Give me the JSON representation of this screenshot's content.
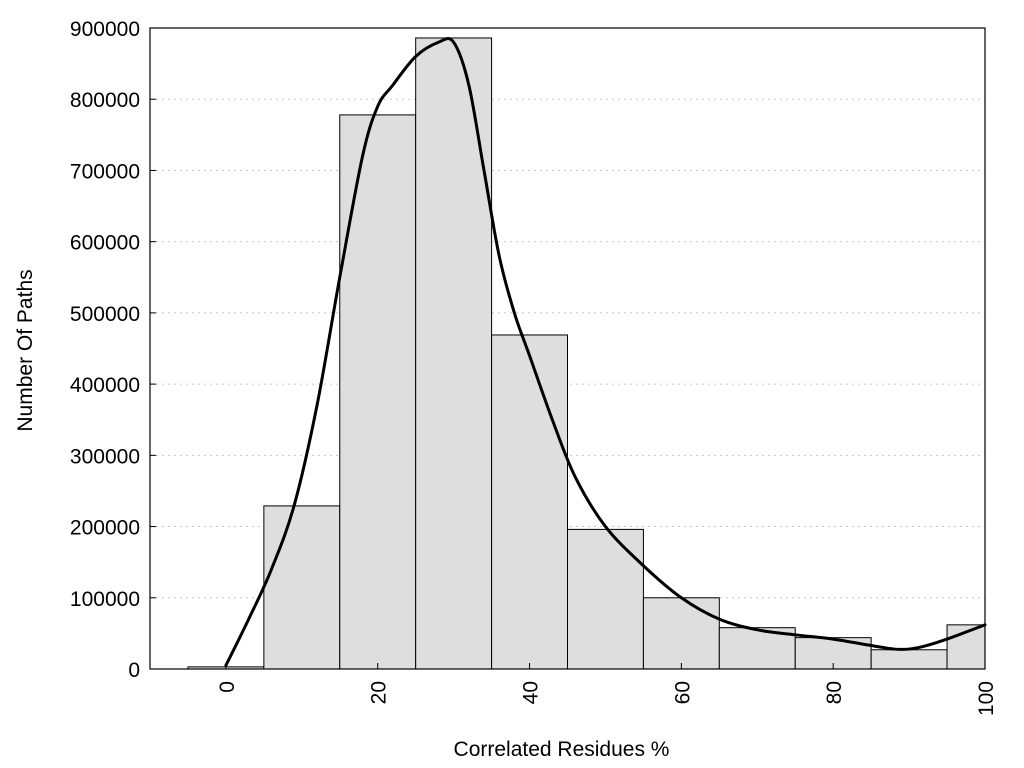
{
  "chart_data": {
    "type": "bar",
    "xlabel": "Correlated Residues %",
    "ylabel": "Number Of Paths",
    "xlim": [
      -10,
      100
    ],
    "ylim": [
      0,
      900000
    ],
    "grid": "horizontal dotted",
    "bar_color": "#dedede",
    "x_ticks": [
      "0",
      "20",
      "40",
      "60",
      "80",
      "100"
    ],
    "y_ticks": [
      "0",
      "100000",
      "200000",
      "300000",
      "400000",
      "500000",
      "600000",
      "700000",
      "800000",
      "900000"
    ],
    "bin_width": 10,
    "bins": [
      {
        "center": 0,
        "value": 3000
      },
      {
        "center": 10,
        "value": 229000
      },
      {
        "center": 20,
        "value": 778000
      },
      {
        "center": 30,
        "value": 886000
      },
      {
        "center": 40,
        "value": 469000
      },
      {
        "center": 50,
        "value": 196000
      },
      {
        "center": 60,
        "value": 100000
      },
      {
        "center": 70,
        "value": 58000
      },
      {
        "center": 80,
        "value": 44000
      },
      {
        "center": 90,
        "value": 27000
      },
      {
        "center": 100,
        "value": 62000
      }
    ],
    "curve": {
      "x": [
        0,
        3,
        6,
        9,
        12,
        15,
        18,
        20,
        22,
        25,
        28,
        30,
        32,
        34,
        36,
        38,
        40,
        43,
        46,
        50,
        55,
        60,
        65,
        70,
        75,
        80,
        85,
        88,
        90,
        92,
        95,
        100
      ],
      "y": [
        5000,
        70000,
        140000,
        230000,
        370000,
        550000,
        720000,
        790000,
        820000,
        860000,
        880000,
        880000,
        820000,
        700000,
        580000,
        500000,
        440000,
        350000,
        270000,
        200000,
        145000,
        100000,
        70000,
        55000,
        48000,
        42000,
        33000,
        28000,
        28000,
        32000,
        42000,
        62000
      ]
    }
  }
}
